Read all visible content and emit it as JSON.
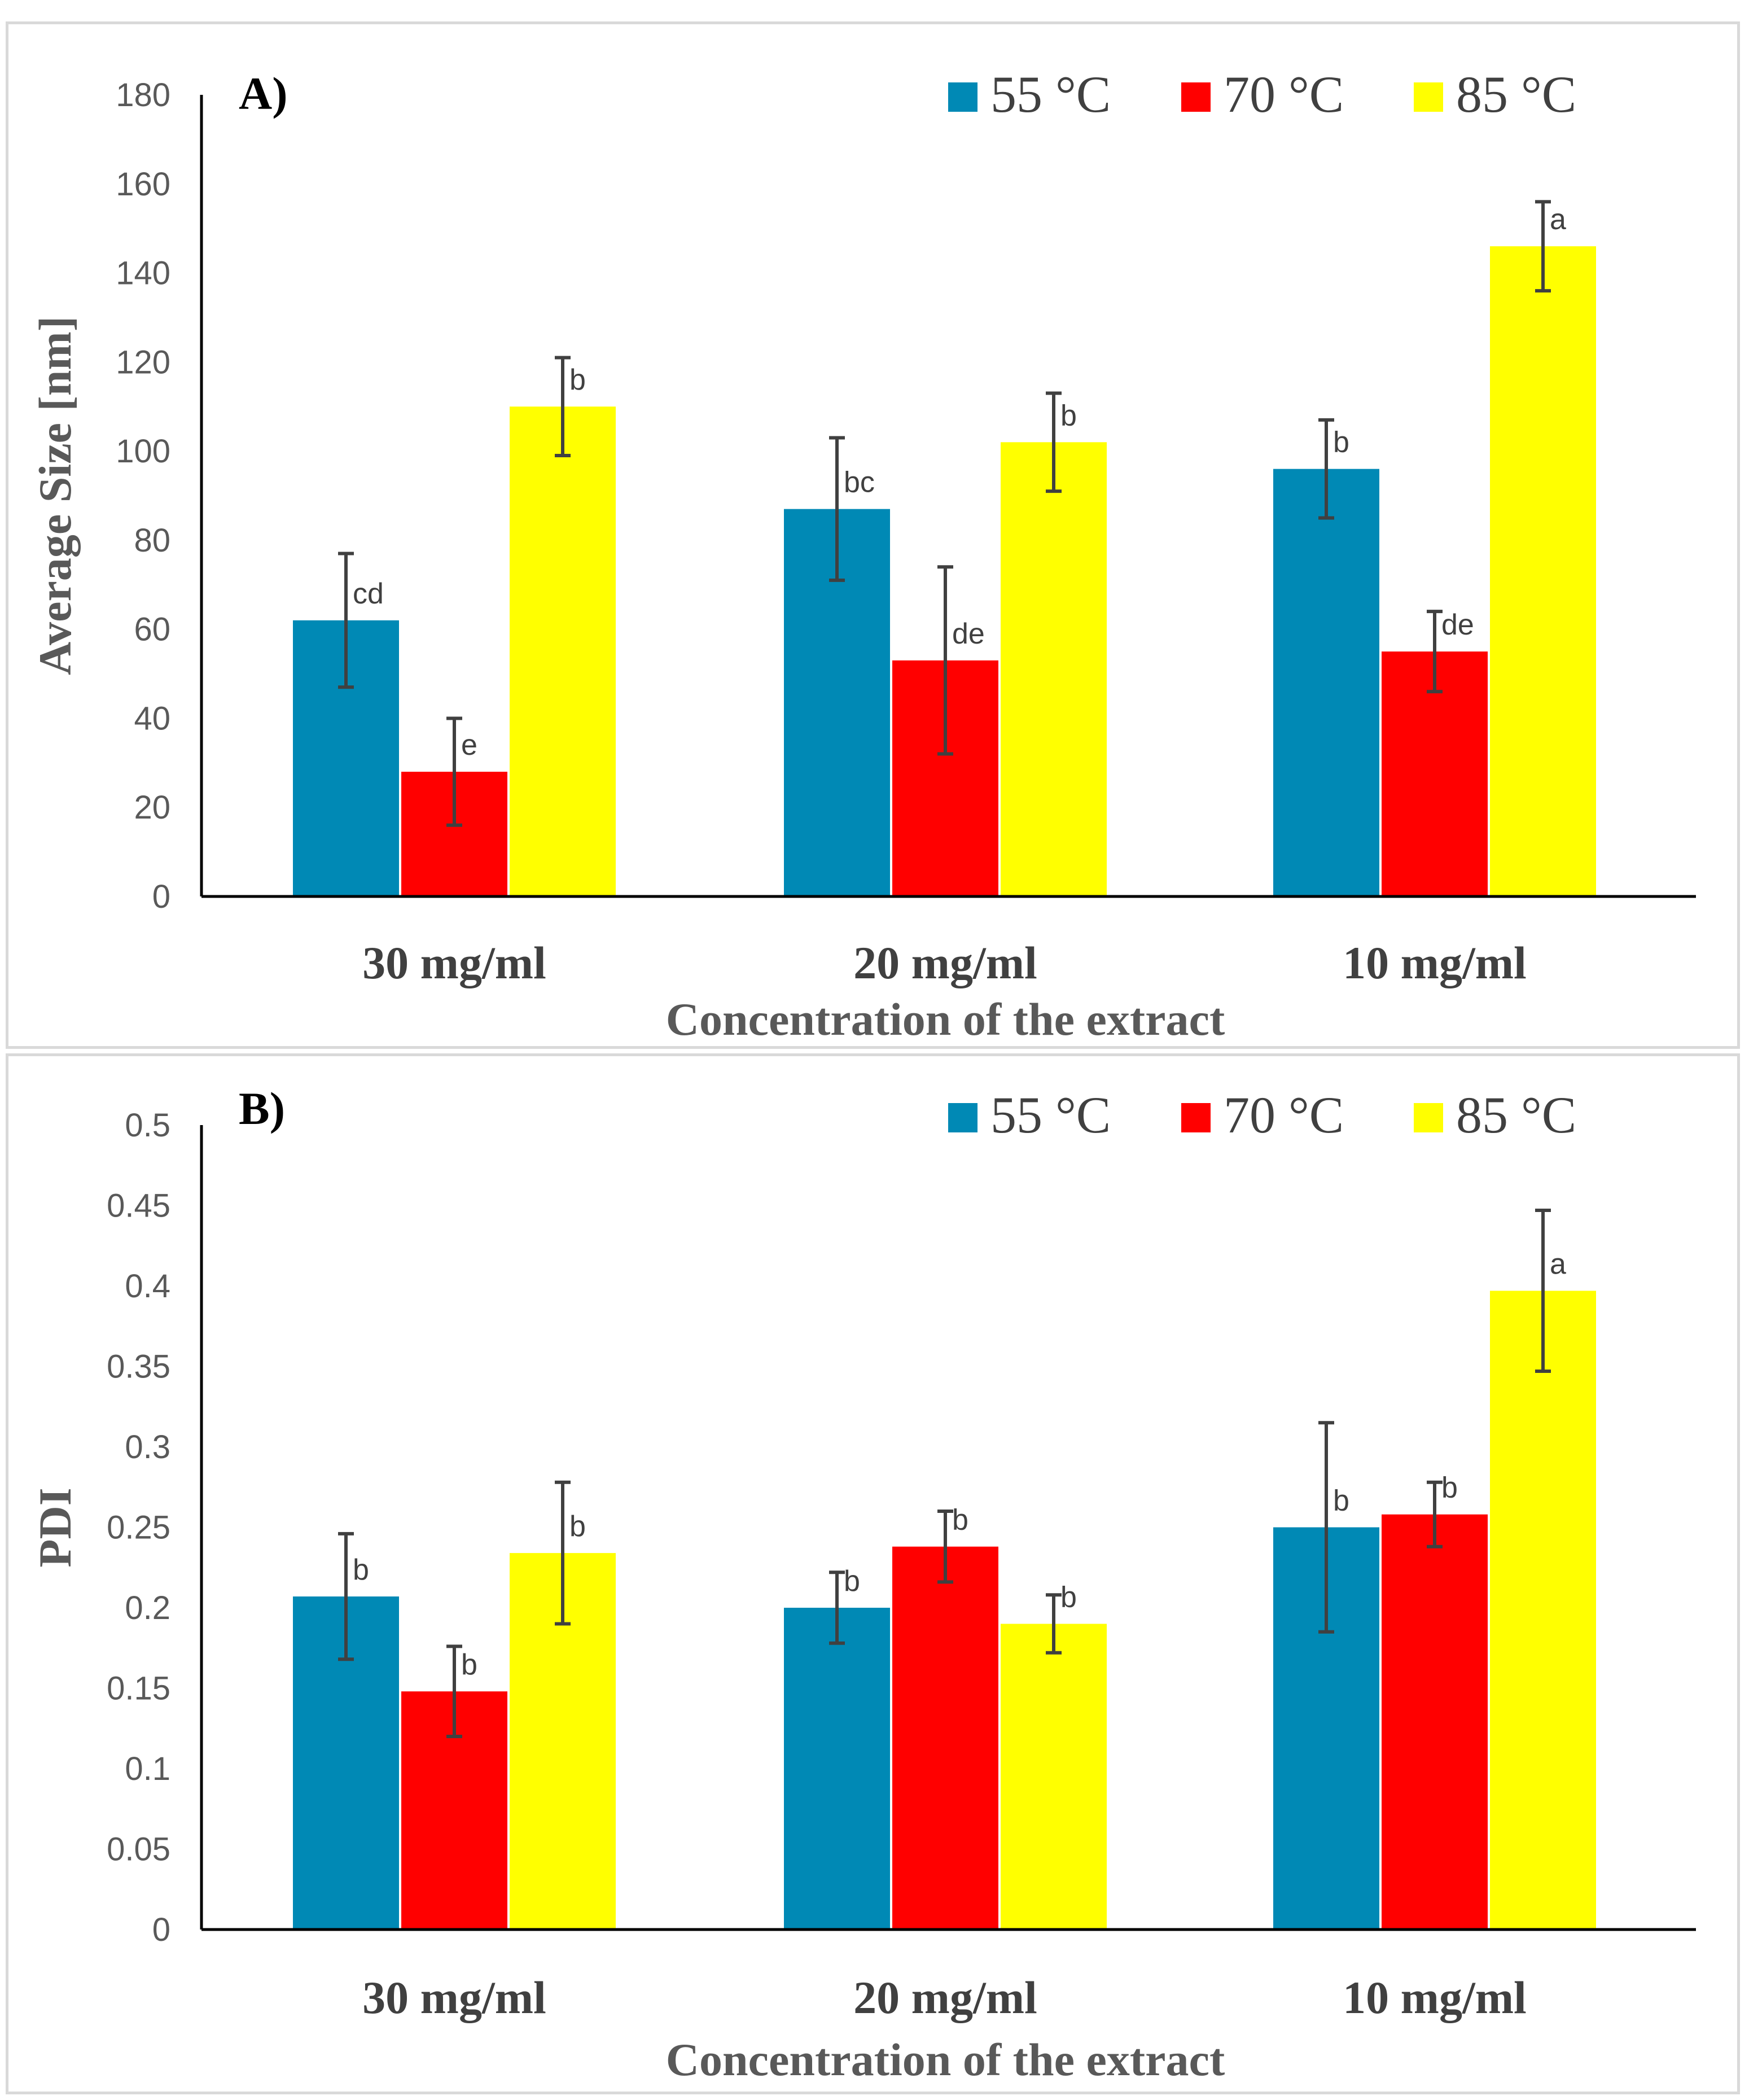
{
  "chart_data": [
    {
      "type": "bar",
      "panel_label": "A)",
      "categories": [
        "30 mg/ml",
        "20 mg/ml",
        "10 mg/ml"
      ],
      "xlabel": "Concentration of the extract",
      "ylabel": "Average Size  [nm]",
      "ylim": [
        0,
        180
      ],
      "yticks": [
        0,
        20,
        40,
        60,
        80,
        100,
        120,
        140,
        160,
        180
      ],
      "ytick_labels": [
        "0",
        "20",
        "40",
        "60",
        "80",
        "100",
        "120",
        "140",
        "160",
        "180"
      ],
      "legend_position": "top-right",
      "series": [
        {
          "name": "55 °C",
          "color": "#0089b5",
          "values": [
            62,
            87,
            96
          ],
          "errors": [
            15,
            16,
            11
          ],
          "labels": [
            "cd",
            "bc",
            "b"
          ]
        },
        {
          "name": "70 °C",
          "color": "#ff0000",
          "values": [
            28,
            53,
            55
          ],
          "errors": [
            12,
            21,
            9
          ],
          "labels": [
            "e",
            "de",
            "de"
          ]
        },
        {
          "name": "85 °C",
          "color": "#ffff00",
          "values": [
            110,
            102,
            146
          ],
          "errors": [
            11,
            11,
            10
          ],
          "labels": [
            "b",
            "b",
            "a"
          ]
        }
      ]
    },
    {
      "type": "bar",
      "panel_label": "B)",
      "categories": [
        "30 mg/ml",
        "20 mg/ml",
        "10 mg/ml"
      ],
      "xlabel": "Concentration of the extract",
      "ylabel": "PDI",
      "ylim": [
        0,
        0.5
      ],
      "yticks": [
        0,
        0.05,
        0.1,
        0.15,
        0.2,
        0.25,
        0.3,
        0.35,
        0.4,
        0.45,
        0.5
      ],
      "ytick_labels": [
        "0",
        "0.05",
        "0.1",
        "0.15",
        "0.2",
        "0.25",
        "0.3",
        "0.35",
        "0.4",
        "0.45",
        "0.5"
      ],
      "legend_position": "top-right",
      "series": [
        {
          "name": "55 °C",
          "color": "#0089b5",
          "values": [
            0.207,
            0.2,
            0.25
          ],
          "errors": [
            0.039,
            0.022,
            0.065
          ],
          "labels": [
            "b",
            "b",
            "b"
          ]
        },
        {
          "name": "70 °C",
          "color": "#ff0000",
          "values": [
            0.148,
            0.238,
            0.258
          ],
          "errors": [
            0.028,
            0.022,
            0.02
          ],
          "labels": [
            "b",
            "b",
            "b"
          ]
        },
        {
          "name": "85 °C",
          "color": "#ffff00",
          "values": [
            0.234,
            0.19,
            0.397
          ],
          "errors": [
            0.044,
            0.018,
            0.05
          ],
          "labels": [
            "b",
            "b",
            "a"
          ]
        }
      ]
    }
  ]
}
